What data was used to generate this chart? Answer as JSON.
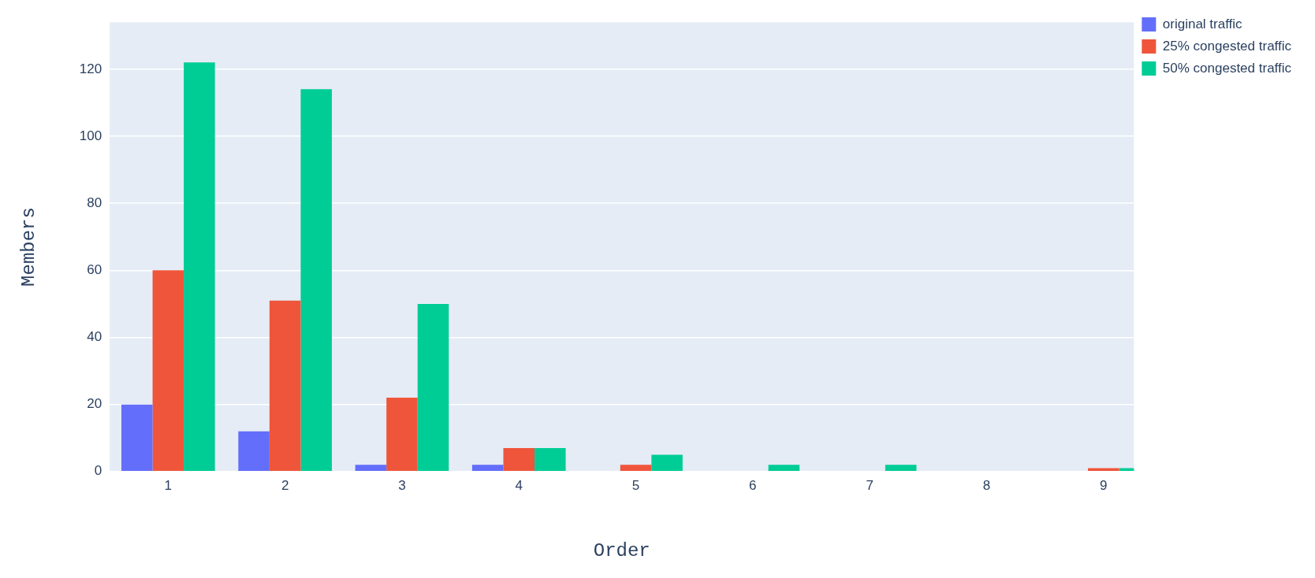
{
  "chart_data": {
    "type": "bar",
    "xlabel": "Order",
    "ylabel": "Members",
    "x": [
      1,
      2,
      3,
      4,
      5,
      6,
      7,
      8,
      9
    ],
    "series": [
      {
        "name": "original traffic",
        "color": "#636efa",
        "values": [
          20,
          12,
          2,
          2,
          0,
          0,
          0,
          0,
          0
        ]
      },
      {
        "name": "25% congested traffic",
        "color": "#ef553b",
        "values": [
          60,
          51,
          22,
          7,
          2,
          0,
          0,
          0,
          1
        ]
      },
      {
        "name": "50% congested traffic",
        "color": "#00cc96",
        "values": [
          122,
          114,
          50,
          7,
          5,
          2,
          2,
          0,
          1
        ]
      }
    ],
    "xlim": [
      0.5,
      9.26
    ],
    "xticks": [
      1,
      2,
      3,
      4,
      5,
      6,
      7,
      8,
      9
    ],
    "ylim": [
      0,
      134
    ],
    "yticks": [
      0,
      20,
      40,
      60,
      80,
      100,
      120
    ],
    "grid": "y",
    "legend": "top right"
  }
}
